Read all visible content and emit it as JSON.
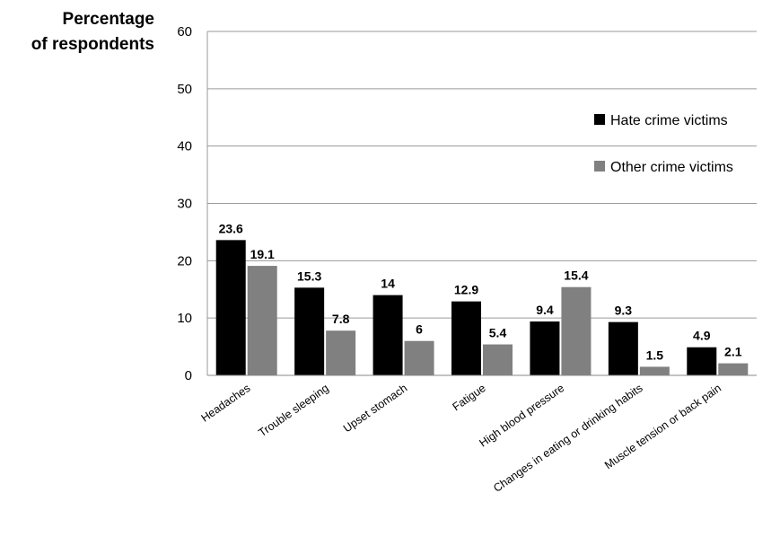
{
  "chart_data": {
    "type": "bar",
    "title": "",
    "ylabel_lines": [
      "Percentage",
      "of respondents"
    ],
    "xlabel": "",
    "ylim": [
      0,
      60
    ],
    "yticks": [
      0,
      10,
      20,
      30,
      40,
      50,
      60
    ],
    "grid": true,
    "legend_position": "right",
    "categories": [
      "Headaches",
      "Trouble sleeping",
      "Upset stomach",
      "Fatigue",
      "High blood pressure",
      "Changes in eating or drinking habits",
      "Muscle tension or back pain"
    ],
    "series": [
      {
        "name": "Hate crime victims",
        "color": "#000000",
        "values": [
          23.6,
          15.3,
          14,
          12.9,
          9.4,
          9.3,
          4.9
        ]
      },
      {
        "name": "Other crime victims",
        "color": "#808080",
        "values": [
          19.1,
          7.8,
          6,
          5.4,
          15.4,
          1.5,
          2.1
        ]
      }
    ]
  }
}
